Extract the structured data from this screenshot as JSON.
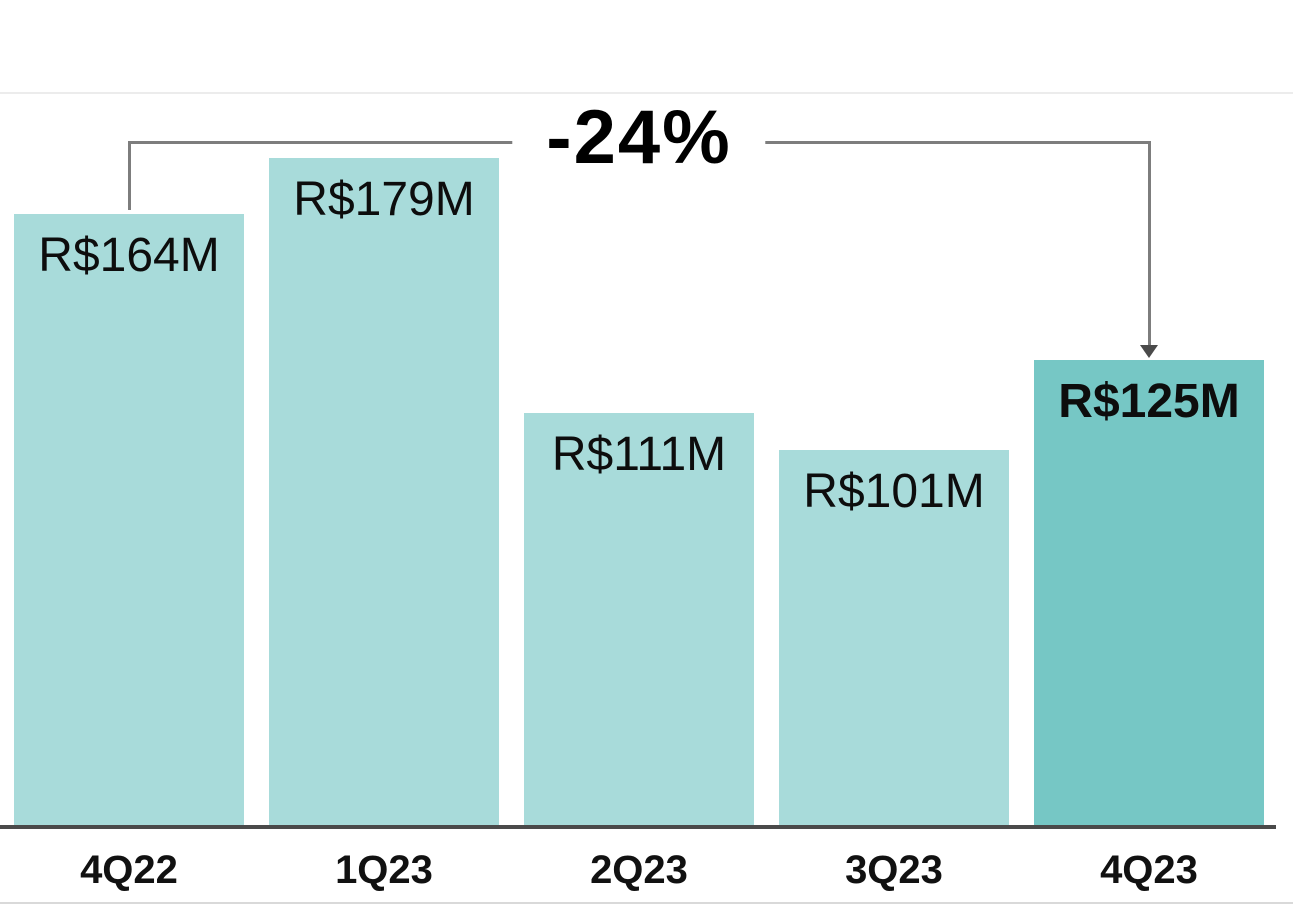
{
  "chart_data": {
    "type": "bar",
    "categories": [
      "4Q22",
      "1Q23",
      "2Q23",
      "3Q23",
      "4Q23"
    ],
    "values": [
      164,
      179,
      111,
      101,
      125
    ],
    "value_labels": [
      "R$164M",
      "R$179M",
      "R$111M",
      "R$101M",
      "R$125M"
    ],
    "highlight_index": 4,
    "title": "",
    "xlabel": "",
    "ylabel": "",
    "ylim": [
      0,
      190
    ],
    "grid": false,
    "legend": "none",
    "annotation": {
      "text": "-24%",
      "from_category": "4Q22",
      "to_category": "4Q23"
    },
    "colors": {
      "bar": "#a8dbda",
      "bar_highlight": "#76c7c5",
      "label_text": "#0d0d0d",
      "bracket_line": "#7d7d7d",
      "arrow_head": "#4a4a4a",
      "axis_line": "#4a4a4a",
      "background": "#ffffff"
    }
  }
}
